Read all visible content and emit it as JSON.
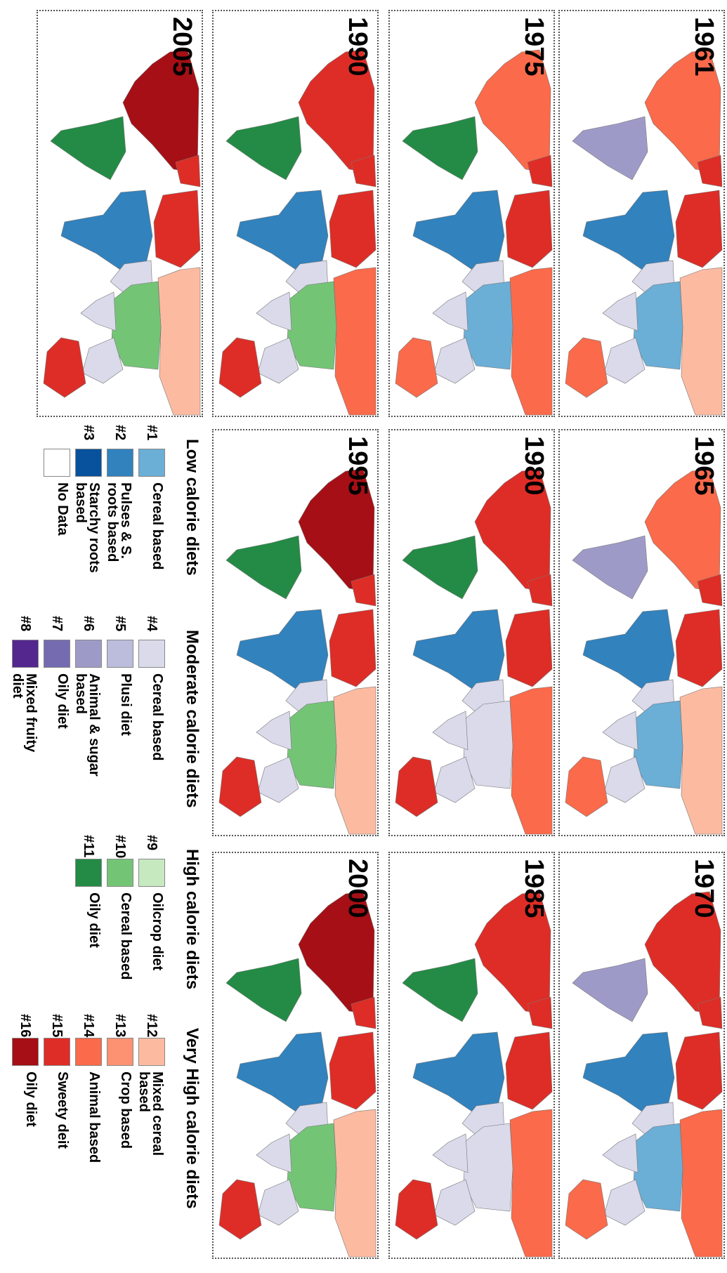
{
  "years": [
    "1961",
    "1965",
    "1970",
    "1975",
    "1980",
    "1985",
    "1990",
    "1995",
    "2000",
    "2005"
  ],
  "legend": {
    "groups": [
      {
        "title": "Low calorie diets",
        "items": [
          {
            "number": "#1",
            "label": "Cereal based",
            "color": "#6baed6"
          },
          {
            "number": "#2",
            "label": "Pulses & S. roots based",
            "color": "#3182bd"
          },
          {
            "number": "#3",
            "label": "Starchy roots based",
            "color": "#08519c"
          }
        ]
      },
      {
        "title": "Moderate calorie diets",
        "items": [
          {
            "number": "#4",
            "label": "Cereal based",
            "color": "#dadaeb"
          },
          {
            "number": "#5",
            "label": "Plusi diet",
            "color": "#bcbddc"
          },
          {
            "number": "#6",
            "label": "Animal & sugar based",
            "color": "#9e9ac8"
          },
          {
            "number": "#7",
            "label": "Oily diet",
            "color": "#756bb1"
          },
          {
            "number": "#8",
            "label": "Mixed fruity diet",
            "color": "#54278f"
          }
        ]
      },
      {
        "title": "High calorie diets",
        "items": [
          {
            "number": "#9",
            "label": "Oilcrop diet",
            "color": "#c7e9c0"
          },
          {
            "number": "#10",
            "label": "Cereal based",
            "color": "#74c476"
          },
          {
            "number": "#11",
            "label": "Oily diet",
            "color": "#238b45"
          }
        ]
      },
      {
        "title": "Very High calorie diets",
        "items": [
          {
            "number": "#12",
            "label": "Mixed cereal based",
            "color": "#fcbba1"
          },
          {
            "number": "#13",
            "label": "Crop based",
            "color": "#fc9272"
          },
          {
            "number": "#14",
            "label": "Animal based",
            "color": "#fb6a4a"
          },
          {
            "number": "#15",
            "label": "Sweety deit",
            "color": "#de2d26"
          },
          {
            "number": "#16",
            "label": "Oily diet",
            "color": "#a50f15"
          }
        ]
      }
    ],
    "no_data": {
      "label": "No Data",
      "color": "#ffffff"
    }
  }
}
